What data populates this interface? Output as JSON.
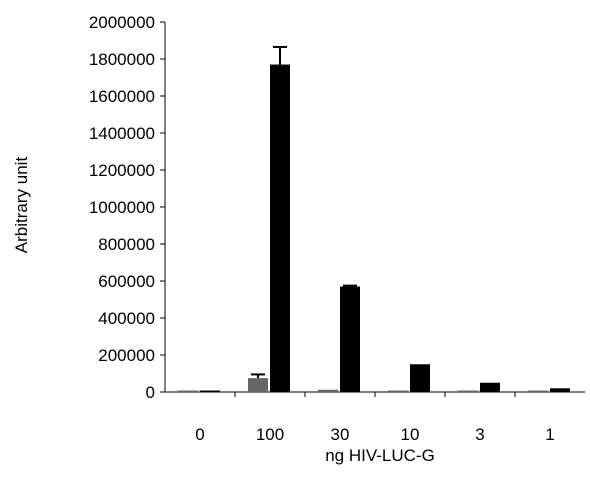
{
  "chart_data": {
    "type": "bar",
    "title": "",
    "xlabel": "ng HIV-LUC-G",
    "ylabel": "Arbitrary unit",
    "categories": [
      "0",
      "100",
      "30",
      "10",
      "3",
      "1"
    ],
    "ylim": [
      0,
      2000000
    ],
    "yticks": [
      0,
      200000,
      400000,
      600000,
      800000,
      1000000,
      1200000,
      1400000,
      1600000,
      1800000,
      2000000
    ],
    "ytick_labels": [
      "0",
      "200000",
      "400000",
      "600000",
      "800000",
      "1000000",
      "1200000",
      "1400000",
      "1600000",
      "1800000",
      "2000000"
    ],
    "grid": false,
    "legend": "none",
    "series": [
      {
        "color": "#666666",
        "values": [
          5000,
          75000,
          12000,
          5000,
          3000,
          4000
        ],
        "error": [
          0,
          20000,
          0,
          0,
          0,
          0
        ]
      },
      {
        "color": "#000000",
        "values": [
          5000,
          1770000,
          570000,
          150000,
          50000,
          20000
        ],
        "error": [
          0,
          95000,
          5000,
          0,
          0,
          0
        ]
      }
    ]
  }
}
